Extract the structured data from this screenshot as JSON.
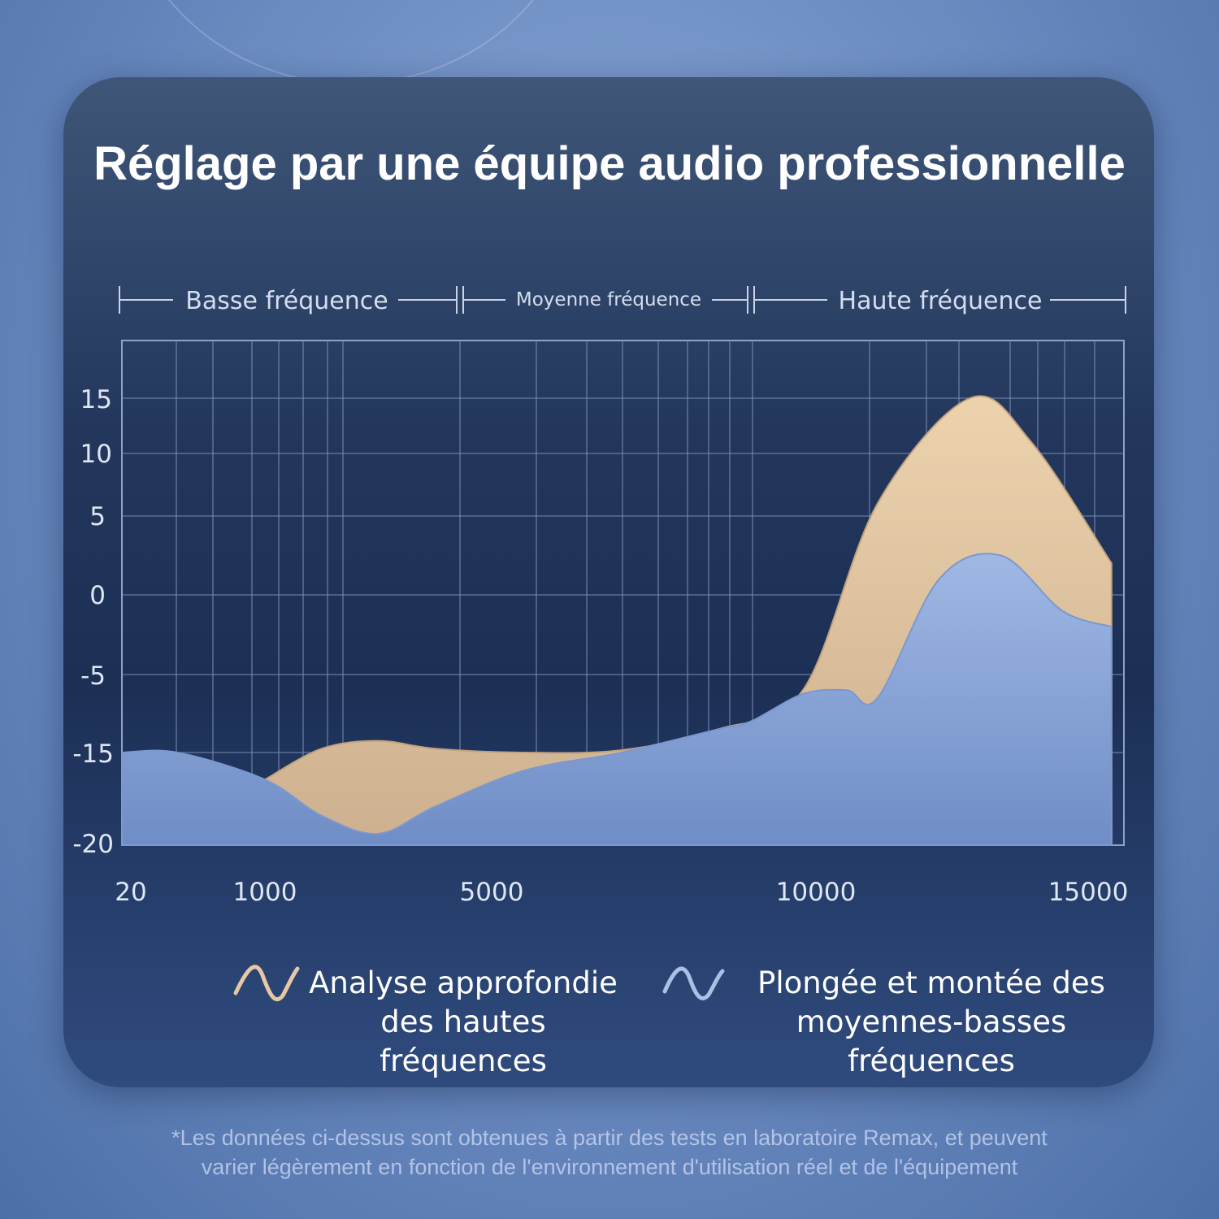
{
  "title": "Réglage par une équipe audio professionnelle",
  "chart_data": {
    "type": "area",
    "bands": [
      {
        "label": "Basse fréquence"
      },
      {
        "label": "Moyenne fréquence"
      },
      {
        "label": "Haute fréquence"
      }
    ],
    "x_ticks": [
      "20",
      "1000",
      "5000",
      "10000",
      "15000"
    ],
    "y_ticks": [
      "15",
      "10",
      "5",
      "0",
      "-5",
      "-15",
      "-20"
    ],
    "series": [
      {
        "name": "Analyse approfondie des hautes fréquences",
        "color": "#e6c9a4",
        "points": [
          [
            1000,
            -16.5
          ],
          [
            2000,
            -14.5
          ],
          [
            3000,
            -13.5
          ],
          [
            4000,
            -14.5
          ],
          [
            5500,
            -15
          ],
          [
            7000,
            -14.7
          ],
          [
            8500,
            -12
          ],
          [
            9800,
            -7
          ],
          [
            11000,
            6
          ],
          [
            12500,
            15
          ],
          [
            13500,
            11
          ],
          [
            14800,
            2
          ]
        ]
      },
      {
        "name": "Plongée et montée des moyennes-basses fréquences",
        "color": "#aac0e6",
        "points": [
          [
            20,
            -15
          ],
          [
            400,
            -15
          ],
          [
            1000,
            -16.5
          ],
          [
            2000,
            -18.5
          ],
          [
            3000,
            -19.5
          ],
          [
            4000,
            -18
          ],
          [
            5500,
            -16
          ],
          [
            7000,
            -15
          ],
          [
            8500,
            -12
          ],
          [
            9000,
            -11
          ],
          [
            9800,
            -7.5
          ],
          [
            10500,
            -7
          ],
          [
            11000,
            -8
          ],
          [
            12000,
            1
          ],
          [
            13000,
            2.5
          ],
          [
            14000,
            -1
          ],
          [
            14800,
            -2
          ]
        ]
      }
    ],
    "legend": [
      {
        "line1": "Analyse approfondie",
        "line2": "des hautes",
        "line3": "fréquences",
        "icon": "sine-wave-icon",
        "color": "#e6c9a4"
      },
      {
        "line1": "Plongée et montée des",
        "line2": "moyennes-basses",
        "line3": "fréquences",
        "icon": "sine-wave-icon",
        "color": "#aac0e6"
      }
    ]
  },
  "footnote": {
    "line1": "*Les données ci-dessus sont obtenues à partir des tests en laboratoire Remax, et peuvent",
    "line2": "varier légèrement en fonction de l'environnement d'utilisation réel et de l'équipement"
  }
}
